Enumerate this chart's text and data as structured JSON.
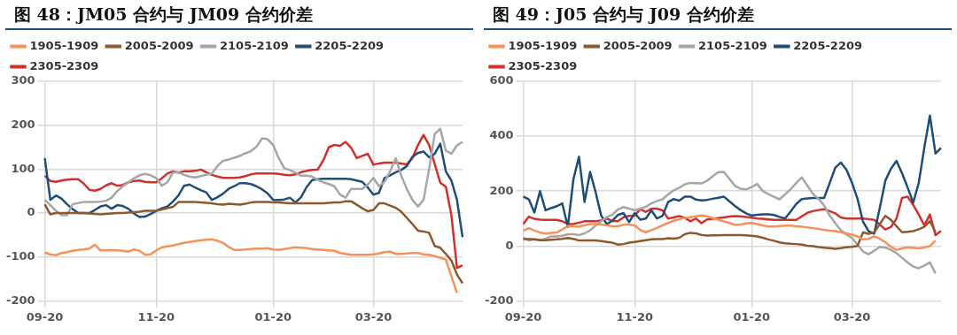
{
  "chart_data": [
    {
      "type": "line",
      "title": "图 48：JM05 合约与 JM09 合约价差",
      "categories": [
        "09-20",
        null,
        null,
        null,
        null,
        null,
        null,
        null,
        null,
        null,
        null,
        null,
        null,
        null,
        null,
        null,
        null,
        null,
        null,
        null,
        "11-20",
        null,
        null,
        null,
        null,
        null,
        null,
        null,
        null,
        null,
        null,
        null,
        null,
        null,
        null,
        null,
        null,
        null,
        null,
        null,
        null,
        "01-20",
        null,
        null,
        null,
        null,
        null,
        null,
        null,
        null,
        null,
        null,
        null,
        null,
        null,
        null,
        null,
        null,
        null,
        "03-20",
        null,
        null,
        null,
        null,
        null,
        null,
        null,
        null,
        null,
        null,
        null,
        null,
        null,
        null,
        null,
        null
      ],
      "ylim": [
        -200,
        300
      ],
      "yticks": [
        -200,
        -100,
        0,
        100,
        200,
        300
      ],
      "grid": true,
      "legend": "top",
      "marker": "none",
      "line_style": "solid",
      "series": [
        {
          "name": "1905-1909",
          "color": "#f4925a",
          "values": [
            -90,
            -94,
            -96,
            -91,
            -89,
            -86,
            -84,
            -83,
            -81,
            -72,
            -85,
            -85,
            -85,
            -85,
            -86,
            -88,
            -83,
            -86,
            -95,
            -94,
            -85,
            -78,
            -76,
            -74,
            -71,
            -68,
            -66,
            -64,
            -62,
            -61,
            -60,
            -63,
            -68,
            -77,
            -84,
            -84,
            -83,
            -82,
            -81,
            -81,
            -80,
            -83,
            -84,
            -82,
            -80,
            -78,
            -79,
            -80,
            -82,
            -83,
            -84,
            -85,
            -86,
            -91,
            -93,
            -95,
            -95,
            -95,
            -95,
            -94,
            -92,
            -89,
            -88,
            -93,
            -93,
            -92,
            -91,
            -91,
            -94,
            -95,
            -98,
            -102,
            -106,
            -144,
            -182,
            null
          ]
        },
        {
          "name": "2005-2009",
          "color": "#8c5a2e",
          "values": [
            20,
            -3,
            0,
            0,
            0,
            0,
            0,
            0,
            -1,
            -2,
            -3,
            -2,
            -1,
            0,
            0,
            1,
            2,
            3,
            5,
            5,
            5,
            8,
            11,
            14,
            25,
            25,
            25,
            25,
            24,
            23,
            22,
            20,
            19,
            21,
            20,
            19,
            21,
            24,
            25,
            25,
            25,
            24,
            24,
            23,
            22,
            22,
            22,
            22,
            22,
            22,
            22,
            23,
            24,
            24,
            27,
            27,
            19,
            11,
            4,
            7,
            22,
            22,
            17,
            12,
            3,
            -11,
            -25,
            -40,
            -42,
            -45,
            -75,
            -79,
            -93,
            -108,
            -140,
            -160
          ]
        },
        {
          "name": "2105-2109",
          "color": "#a6a6a6",
          "values": [
            30,
            18,
            5,
            -5,
            -5,
            20,
            23,
            25,
            25,
            25,
            26,
            28,
            35,
            50,
            61,
            70,
            79,
            86,
            89,
            86,
            80,
            62,
            70,
            92,
            93,
            87,
            83,
            81,
            84,
            87,
            90,
            107,
            119,
            122,
            126,
            130,
            136,
            141,
            151,
            170,
            168,
            155,
            125,
            102,
            98,
            92,
            85,
            85,
            83,
            76,
            70,
            66,
            61,
            42,
            35,
            55,
            55,
            55,
            65,
            80,
            61,
            71,
            95,
            125,
            85,
            55,
            30,
            15,
            30,
            100,
            180,
            192,
            142,
            135,
            154,
            162
          ]
        },
        {
          "name": "2205-2209",
          "color": "#1f4e79",
          "values": [
            125,
            30,
            40,
            33,
            20,
            9,
            0,
            0,
            0,
            7,
            15,
            18,
            10,
            18,
            16,
            10,
            -1,
            -9,
            -8,
            -2,
            5,
            11,
            15,
            26,
            40,
            62,
            65,
            58,
            52,
            47,
            30,
            36,
            44,
            55,
            61,
            68,
            68,
            66,
            61,
            54,
            45,
            30,
            30,
            31,
            35,
            24,
            36,
            59,
            75,
            77,
            78,
            78,
            78,
            78,
            78,
            77,
            74,
            71,
            58,
            42,
            46,
            80,
            86,
            93,
            98,
            107,
            128,
            137,
            140,
            127,
            135,
            158,
            95,
            74,
            30,
            -55
          ]
        },
        {
          "name": "2305-2309",
          "color": "#d0312d",
          "values": [
            85,
            73,
            71,
            74,
            76,
            77,
            77,
            67,
            53,
            51,
            55,
            63,
            68,
            62,
            64,
            70,
            73,
            74,
            71,
            70,
            70,
            79,
            90,
            95,
            92,
            95,
            95,
            96,
            99,
            93,
            87,
            83,
            80,
            80,
            80,
            81,
            84,
            88,
            90,
            90,
            90,
            90,
            89,
            87,
            86,
            88,
            93,
            96,
            98,
            99,
            120,
            150,
            155,
            153,
            162,
            149,
            125,
            130,
            135,
            110,
            113,
            115,
            115,
            115,
            113,
            111,
            125,
            155,
            178,
            155,
            112,
            69,
            60,
            -5,
            -125,
            -119
          ]
        }
      ]
    },
    {
      "type": "line",
      "title": "图 49：J05 合约与 J09 合约价差",
      "categories": [
        "09-20",
        null,
        null,
        null,
        null,
        null,
        null,
        null,
        null,
        null,
        null,
        null,
        null,
        null,
        null,
        null,
        null,
        null,
        null,
        null,
        "11-20",
        null,
        null,
        null,
        null,
        null,
        null,
        null,
        null,
        null,
        null,
        null,
        null,
        null,
        null,
        null,
        null,
        null,
        null,
        null,
        null,
        "01-20",
        null,
        null,
        null,
        null,
        null,
        null,
        null,
        null,
        null,
        null,
        null,
        null,
        null,
        null,
        null,
        null,
        null,
        "03-20",
        null,
        null,
        null,
        null,
        null,
        null,
        null,
        null,
        null,
        null,
        null,
        null,
        null,
        null,
        null,
        null
      ],
      "ylim": [
        -200,
        600
      ],
      "yticks": [
        -200,
        0,
        200,
        400,
        600
      ],
      "grid": true,
      "legend": "top",
      "marker": "none",
      "line_style": "solid",
      "series": [
        {
          "name": "1905-1909",
          "color": "#f4925a",
          "values": [
            55,
            65,
            56,
            49,
            45,
            48,
            49,
            60,
            73,
            72,
            70,
            76,
            80,
            80,
            78,
            75,
            72,
            72,
            78,
            78,
            75,
            58,
            50,
            58,
            66,
            75,
            84,
            92,
            98,
            102,
            105,
            108,
            111,
            108,
            102,
            96,
            90,
            84,
            77,
            78,
            82,
            84,
            80,
            75,
            71,
            71,
            73,
            74,
            74,
            72,
            70,
            68,
            65,
            62,
            59,
            56,
            54,
            51,
            46,
            41,
            35,
            24,
            26,
            35,
            26,
            14,
            -3,
            -14,
            -9,
            -5,
            -7,
            -9,
            -6,
            0,
            20,
            null
          ]
        },
        {
          "name": "2005-2009",
          "color": "#8c5a2e",
          "values": [
            25,
            25,
            24,
            21,
            21,
            23,
            24,
            26,
            29,
            26,
            20,
            20,
            20,
            20,
            18,
            15,
            12,
            5,
            7,
            12,
            15,
            18,
            21,
            24,
            25,
            25,
            28,
            27,
            30,
            43,
            48,
            46,
            40,
            38,
            39,
            39,
            40,
            40,
            40,
            40,
            39,
            37,
            35,
            30,
            24,
            19,
            13,
            10,
            8,
            7,
            5,
            1,
            -1,
            -4,
            -6,
            -8,
            -10,
            -8,
            -5,
            -3,
            0,
            50,
            44,
            50,
            80,
            110,
            95,
            72,
            50,
            52,
            54,
            61,
            70,
            91,
            50,
            null
          ]
        },
        {
          "name": "2105-2109",
          "color": "#a6a6a6",
          "values": [
            30,
            20,
            24,
            22,
            26,
            35,
            35,
            37,
            43,
            43,
            40,
            46,
            57,
            75,
            90,
            105,
            114,
            133,
            142,
            136,
            130,
            136,
            143,
            155,
            164,
            170,
            188,
            203,
            212,
            225,
            230,
            229,
            228,
            238,
            254,
            269,
            270,
            245,
            219,
            209,
            206,
            215,
            226,
            200,
            189,
            179,
            170,
            188,
            207,
            229,
            250,
            220,
            190,
            172,
            148,
            112,
            83,
            58,
            42,
            30,
            5,
            -20,
            -30,
            -17,
            -4,
            -6,
            -14,
            -26,
            -43,
            -60,
            -75,
            -81,
            -71,
            -60,
            -100,
            null
          ]
        },
        {
          "name": "2205-2209",
          "color": "#1f4e79",
          "values": [
            180,
            170,
            122,
            200,
            130,
            138,
            145,
            155,
            70,
            243,
            325,
            160,
            270,
            195,
            110,
            80,
            92,
            113,
            120,
            87,
            120,
            96,
            100,
            130,
            100,
            110,
            160,
            171,
            165,
            180,
            180,
            169,
            166,
            168,
            172,
            176,
            180,
            163,
            146,
            131,
            119,
            111,
            114,
            115,
            115,
            113,
            106,
            100,
            126,
            153,
            171,
            173,
            175,
            175,
            175,
            229,
            285,
            304,
            279,
            231,
            172,
            88,
            54,
            45,
            139,
            238,
            281,
            310,
            265,
            213,
            158,
            230,
            359,
            475,
            337,
            357
          ]
        },
        {
          "name": "2305-2309",
          "color": "#d0312d",
          "values": [
            80,
            107,
            99,
            96,
            95,
            95,
            95,
            90,
            80,
            80,
            85,
            90,
            90,
            90,
            94,
            100,
            91,
            90,
            105,
            110,
            110,
            135,
            124,
            136,
            136,
            130,
            100,
            104,
            109,
            102,
            90,
            100,
            83,
            97,
            99,
            102,
            104,
            107,
            109,
            108,
            106,
            103,
            100,
            99,
            97,
            95,
            95,
            95,
            95,
            95,
            108,
            121,
            127,
            131,
            134,
            127,
            119,
            104,
            100,
            100,
            100,
            100,
            98,
            95,
            78,
            60,
            69,
            100,
            175,
            180,
            150,
            114,
            75,
            115,
            40,
            55
          ]
        }
      ]
    }
  ]
}
